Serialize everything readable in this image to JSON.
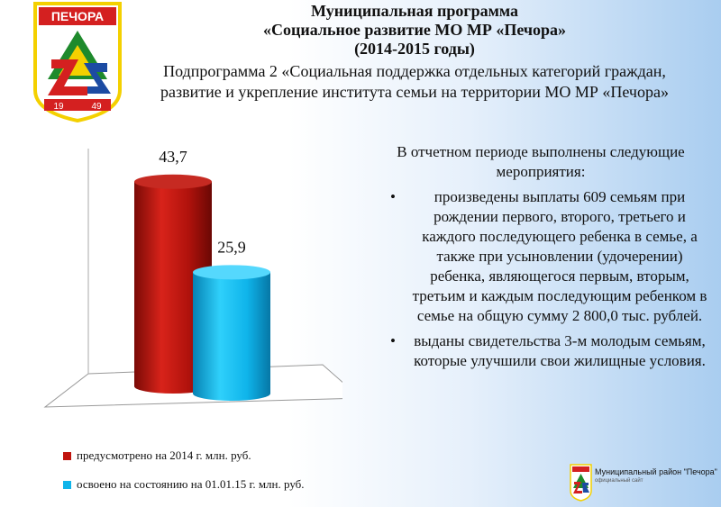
{
  "header": {
    "title_lines": [
      "Муниципальная программа",
      "«Социальное развитие МО МР «Печора»",
      "(2014-2015 годы)"
    ],
    "subtitle": "Подпрограмма 2 «Социальная поддержка отдельных категорий граждан, развитие и укрепление института семьи на территории МО МР «Печора»"
  },
  "crest": {
    "banner_text": "ПЕЧОРА",
    "year_left": "19",
    "year_right": "49",
    "colors": {
      "red": "#d42020",
      "yellow": "#f4d000",
      "green": "#1e8a2c",
      "blue": "#1c4ba3"
    }
  },
  "chart_data": {
    "type": "bar",
    "categories": [
      "предусмотрено на 2014 г. млн. руб.",
      "освоено на состоянию на 01.01.15 г. млн. руб."
    ],
    "values": [
      43.7,
      25.9
    ],
    "data_labels": [
      "43,7",
      "25,9"
    ],
    "colors": [
      "#c0140e",
      "#0fb4ea"
    ],
    "style": "3d-cylinder",
    "legend_position": "bottom-left",
    "grid": false,
    "ylim": [
      0,
      50
    ]
  },
  "legend": {
    "items": [
      {
        "label": "предусмотрено на 2014 г. млн. руб.",
        "color": "#c0140e"
      },
      {
        "label": "освоено на состоянию на 01.01.15 г. млн. руб.",
        "color": "#0fb4ea"
      }
    ]
  },
  "report": {
    "intro": "В отчетном периоде выполнены следующие мероприятия:",
    "bullets": [
      {
        "marker": "•",
        "text": "произведены выплаты 609 семьям при рождении первого, второго, третьего и каждого последующего ребенка в семье, а также при усыновлении (удочерении) ребенка, являющегося первым, вторым, третьим и каждым последующим ребенком в семье на общую сумму 2 800,0 тыс. рублей."
      },
      {
        "marker": "•",
        "text": "выданы свидетельства 3-м молодым семьям, которые улучшили свои жилищные условия."
      }
    ]
  },
  "footer": {
    "title": "Муниципальный район \"Печора\"",
    "subtitle": "официальный сайт"
  }
}
